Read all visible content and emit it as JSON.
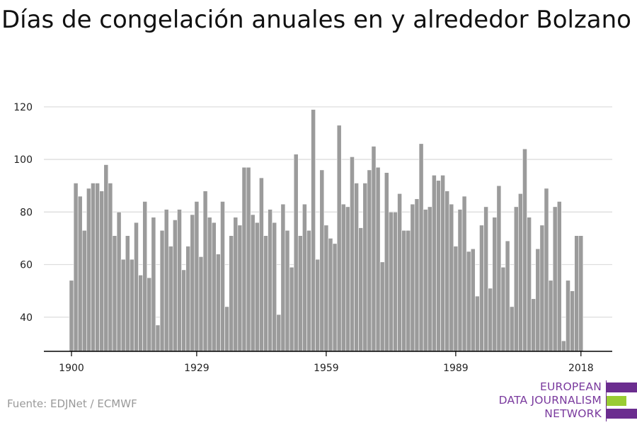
{
  "title": "Días de congelación anuales en y alrededor Bolzano",
  "source": "Fuente: EDJNet / ECMWF",
  "logo": {
    "lines": [
      "EUROPEAN",
      "DATA JOURNALISM",
      "NETWORK"
    ],
    "text_color": "#7a3a9e",
    "bar_colors": [
      "#6b2d8f",
      "#99cc33",
      "#6b2d8f"
    ]
  },
  "colors": {
    "bar": "#9b9b9b",
    "grid": "#dddddd",
    "axis": "#000000"
  },
  "chart_data": {
    "type": "bar",
    "title": "Días de congelación anuales en y alrededor Bolzano",
    "xlabel": "",
    "ylabel": "",
    "x_ticks": [
      1900,
      1929,
      1959,
      1989,
      2018
    ],
    "y_ticks": [
      40,
      60,
      80,
      100,
      120
    ],
    "ylim": [
      27,
      124
    ],
    "grid": true,
    "categories": [
      1900,
      1901,
      1902,
      1903,
      1904,
      1905,
      1906,
      1907,
      1908,
      1909,
      1910,
      1911,
      1912,
      1913,
      1914,
      1915,
      1916,
      1917,
      1918,
      1919,
      1920,
      1921,
      1922,
      1923,
      1924,
      1925,
      1926,
      1927,
      1928,
      1929,
      1930,
      1931,
      1932,
      1933,
      1934,
      1935,
      1936,
      1937,
      1938,
      1939,
      1940,
      1941,
      1942,
      1943,
      1944,
      1945,
      1946,
      1947,
      1948,
      1949,
      1950,
      1951,
      1952,
      1953,
      1954,
      1955,
      1956,
      1957,
      1958,
      1959,
      1960,
      1961,
      1962,
      1963,
      1964,
      1965,
      1966,
      1967,
      1968,
      1969,
      1970,
      1971,
      1972,
      1973,
      1974,
      1975,
      1976,
      1977,
      1978,
      1979,
      1980,
      1981,
      1982,
      1983,
      1984,
      1985,
      1986,
      1987,
      1988,
      1989,
      1990,
      1991,
      1992,
      1993,
      1994,
      1995,
      1996,
      1997,
      1998,
      1999,
      2000,
      2001,
      2002,
      2003,
      2004,
      2005,
      2006,
      2007,
      2008,
      2009,
      2010,
      2011,
      2012,
      2013,
      2014,
      2015,
      2016,
      2017,
      2018
    ],
    "values": [
      54,
      91,
      86,
      73,
      89,
      91,
      91,
      88,
      98,
      91,
      71,
      80,
      62,
      71,
      62,
      76,
      56,
      84,
      55,
      78,
      37,
      73,
      81,
      67,
      77,
      81,
      58,
      67,
      79,
      84,
      63,
      88,
      78,
      76,
      64,
      84,
      44,
      71,
      78,
      75,
      97,
      97,
      79,
      76,
      93,
      71,
      81,
      76,
      41,
      83,
      73,
      59,
      102,
      71,
      83,
      73,
      119,
      62,
      96,
      75,
      70,
      68,
      113,
      83,
      82,
      101,
      91,
      74,
      91,
      96,
      105,
      97,
      61,
      95,
      80,
      80,
      87,
      73,
      73,
      83,
      85,
      106,
      81,
      82,
      94,
      92,
      94,
      88,
      83,
      67,
      81,
      86,
      65,
      66,
      48,
      75,
      82,
      51,
      78,
      90,
      59,
      69,
      44,
      82,
      87,
      104,
      78,
      47,
      66,
      75,
      89,
      54,
      82,
      84,
      31,
      54,
      50,
      71,
      71
    ]
  }
}
